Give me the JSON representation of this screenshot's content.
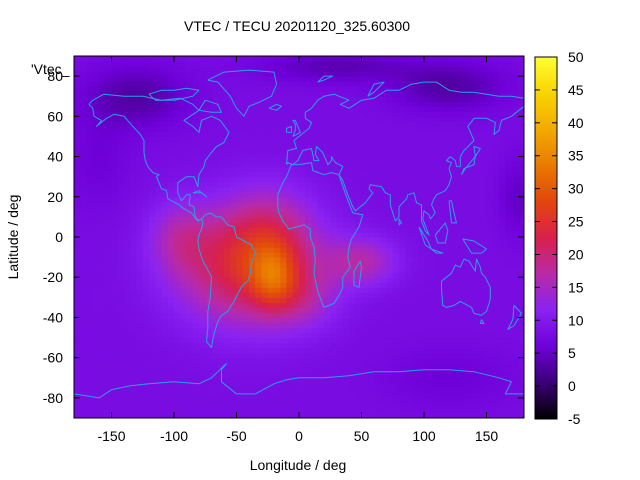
{
  "chart_data": {
    "type": "heatmap",
    "title": "VTEC / TECU 20201120_325.60300",
    "xlabel": "Longitude / deg",
    "ylabel": "Latitude / deg",
    "legend_label": "'Vtec_",
    "xlim": [
      -180,
      180
    ],
    "ylim": [
      -90,
      90
    ],
    "x_ticks": [
      -150,
      -100,
      -50,
      0,
      50,
      100,
      150
    ],
    "y_ticks": [
      -80,
      -60,
      -40,
      -20,
      0,
      20,
      40,
      60,
      80
    ],
    "colorbar": {
      "range": [
        -5,
        50
      ],
      "ticks": [
        -5,
        0,
        5,
        10,
        15,
        20,
        25,
        30,
        35,
        40,
        45,
        50
      ],
      "colors": [
        "#000000",
        "#3a0076",
        "#6e00d8",
        "#8a22f2",
        "#b82ba8",
        "#d8204c",
        "#e2460d",
        "#e97a00",
        "#f2aa00",
        "#f9d400",
        "#ffff33"
      ]
    },
    "background_value": 8,
    "blobs": [
      {
        "lon": -40,
        "lat": -15,
        "amp": 16,
        "slon": 55,
        "slat": 28,
        "desc": "main anomaly over South America / South Atlantic"
      },
      {
        "lon": -25,
        "lat": 5,
        "amp": 6,
        "slon": 35,
        "slat": 22
      },
      {
        "lon": -95,
        "lat": 0,
        "amp": 6,
        "slon": 25,
        "slat": 18
      },
      {
        "lon": 50,
        "lat": -12,
        "amp": 8,
        "slon": 28,
        "slat": 12
      },
      {
        "lon": -20,
        "lat": -20,
        "amp": 10,
        "slon": 18,
        "slat": 16
      },
      {
        "lon": 5,
        "lat": -30,
        "amp": 4,
        "slon": 25,
        "slat": 15
      },
      {
        "lon": -130,
        "lat": 70,
        "amp": -5,
        "slon": 40,
        "slat": 15
      },
      {
        "lon": 120,
        "lat": 75,
        "amp": -5,
        "slon": 45,
        "slat": 12
      },
      {
        "lon": 30,
        "lat": 85,
        "amp": -4,
        "slon": 60,
        "slat": 8
      },
      {
        "lon": -160,
        "lat": 40,
        "amp": -2,
        "slon": 25,
        "slat": 25
      },
      {
        "lon": 175,
        "lat": 20,
        "amp": -3,
        "slon": 15,
        "slat": 20
      },
      {
        "lon": 120,
        "lat": -70,
        "amp": -2,
        "slon": 50,
        "slat": 15
      }
    ]
  },
  "coastlines": [
    [
      [
        -165,
        68
      ],
      [
        -156,
        71
      ],
      [
        -140,
        70
      ],
      [
        -125,
        70
      ],
      [
        -110,
        68
      ],
      [
        -95,
        69
      ],
      [
        -85,
        66
      ],
      [
        -80,
        63
      ],
      [
        -92,
        58
      ],
      [
        -85,
        55
      ],
      [
        -80,
        52
      ],
      [
        -78,
        58
      ],
      [
        -70,
        60
      ],
      [
        -63,
        58
      ],
      [
        -56,
        52
      ],
      [
        -60,
        47
      ],
      [
        -66,
        45
      ],
      [
        -70,
        42
      ],
      [
        -75,
        38
      ],
      [
        -76,
        35
      ],
      [
        -80,
        31
      ],
      [
        -81,
        25
      ],
      [
        -84,
        30
      ],
      [
        -90,
        30
      ],
      [
        -97,
        27
      ],
      [
        -97,
        22
      ],
      [
        -94,
        18
      ],
      [
        -90,
        21
      ],
      [
        -87,
        21
      ],
      [
        -88,
        16
      ],
      [
        -84,
        15
      ],
      [
        -83,
        10
      ],
      [
        -80,
        8
      ],
      [
        -78,
        9
      ],
      [
        -81,
        8
      ],
      [
        -86,
        12
      ],
      [
        -92,
        14
      ],
      [
        -96,
        16
      ],
      [
        -105,
        19
      ],
      [
        -106,
        23
      ],
      [
        -110,
        24
      ],
      [
        -114,
        30
      ],
      [
        -112,
        31
      ],
      [
        -117,
        32
      ],
      [
        -121,
        35
      ],
      [
        -123,
        38
      ],
      [
        -124,
        42
      ],
      [
        -124,
        48
      ],
      [
        -127,
        51
      ],
      [
        -133,
        55
      ],
      [
        -140,
        60
      ],
      [
        -148,
        61
      ],
      [
        -154,
        59
      ],
      [
        -162,
        55
      ],
      [
        -158,
        58
      ],
      [
        -164,
        60
      ],
      [
        -165,
        64
      ],
      [
        -168,
        66
      ],
      [
        -165,
        68
      ]
    ],
    [
      [
        -78,
        9
      ],
      [
        -75,
        11
      ],
      [
        -71,
        12
      ],
      [
        -66,
        10
      ],
      [
        -62,
        10
      ],
      [
        -57,
        6
      ],
      [
        -52,
        5
      ],
      [
        -50,
        0
      ],
      [
        -44,
        -2
      ],
      [
        -38,
        -4
      ],
      [
        -35,
        -8
      ],
      [
        -38,
        -13
      ],
      [
        -39,
        -18
      ],
      [
        -41,
        -22
      ],
      [
        -45,
        -24
      ],
      [
        -48,
        -27
      ],
      [
        -52,
        -32
      ],
      [
        -57,
        -37
      ],
      [
        -62,
        -39
      ],
      [
        -65,
        -42
      ],
      [
        -67,
        -46
      ],
      [
        -69,
        -51
      ],
      [
        -70,
        -55
      ],
      [
        -74,
        -52
      ],
      [
        -73,
        -45
      ],
      [
        -73,
        -37
      ],
      [
        -71,
        -30
      ],
      [
        -70,
        -20
      ],
      [
        -74,
        -15
      ],
      [
        -77,
        -12
      ],
      [
        -80,
        -6
      ],
      [
        -81,
        -2
      ],
      [
        -80,
        1
      ],
      [
        -78,
        4
      ],
      [
        -77,
        7
      ],
      [
        -78,
        9
      ]
    ],
    [
      [
        -17,
        15
      ],
      [
        -17,
        21
      ],
      [
        -13,
        27
      ],
      [
        -10,
        30
      ],
      [
        -6,
        36
      ],
      [
        0,
        36
      ],
      [
        10,
        37
      ],
      [
        11,
        33
      ],
      [
        20,
        31
      ],
      [
        26,
        32
      ],
      [
        32,
        31
      ],
      [
        34,
        27
      ],
      [
        38,
        20
      ],
      [
        43,
        12
      ],
      [
        51,
        11
      ],
      [
        48,
        5
      ],
      [
        42,
        -1
      ],
      [
        40,
        -5
      ],
      [
        39,
        -10
      ],
      [
        41,
        -15
      ],
      [
        35,
        -20
      ],
      [
        35,
        -25
      ],
      [
        32,
        -29
      ],
      [
        28,
        -33
      ],
      [
        20,
        -35
      ],
      [
        18,
        -32
      ],
      [
        15,
        -27
      ],
      [
        12,
        -18
      ],
      [
        13,
        -12
      ],
      [
        12,
        -5
      ],
      [
        9,
        0
      ],
      [
        9,
        4
      ],
      [
        4,
        6
      ],
      [
        -2,
        5
      ],
      [
        -8,
        4
      ],
      [
        -13,
        8
      ],
      [
        -16,
        12
      ],
      [
        -17,
        15
      ]
    ],
    [
      [
        -10,
        36
      ],
      [
        -9,
        43
      ],
      [
        -2,
        44
      ],
      [
        -4,
        48
      ],
      [
        2,
        51
      ],
      [
        8,
        54
      ],
      [
        10,
        57
      ],
      [
        5,
        59
      ],
      [
        5,
        62
      ],
      [
        10,
        64
      ],
      [
        15,
        68
      ],
      [
        20,
        70
      ],
      [
        28,
        71
      ],
      [
        40,
        68
      ],
      [
        33,
        66
      ],
      [
        40,
        64
      ],
      [
        50,
        68
      ],
      [
        60,
        69
      ],
      [
        70,
        73
      ],
      [
        80,
        73
      ],
      [
        90,
        76
      ],
      [
        100,
        77
      ],
      [
        110,
        77
      ],
      [
        120,
        73
      ],
      [
        130,
        72
      ],
      [
        140,
        72
      ],
      [
        150,
        71
      ],
      [
        160,
        70
      ],
      [
        170,
        70
      ],
      [
        180,
        69
      ]
    ],
    [
      [
        180,
        65
      ],
      [
        178,
        64
      ],
      [
        170,
        60
      ],
      [
        162,
        58
      ],
      [
        160,
        53
      ],
      [
        156,
        51
      ],
      [
        157,
        57
      ],
      [
        150,
        59
      ],
      [
        140,
        59
      ],
      [
        135,
        55
      ],
      [
        140,
        48
      ],
      [
        132,
        43
      ],
      [
        129,
        40
      ],
      [
        129,
        35
      ],
      [
        126,
        35
      ],
      [
        125,
        38
      ],
      [
        121,
        40
      ],
      [
        118,
        38
      ],
      [
        122,
        37
      ],
      [
        120,
        34
      ],
      [
        122,
        30
      ],
      [
        120,
        26
      ],
      [
        117,
        23
      ],
      [
        110,
        21
      ],
      [
        108,
        19
      ],
      [
        106,
        16
      ],
      [
        109,
        12
      ],
      [
        105,
        9
      ],
      [
        104,
        11
      ],
      [
        100,
        13
      ],
      [
        99,
        9
      ],
      [
        104,
        1
      ],
      [
        101,
        3
      ],
      [
        98,
        8
      ],
      [
        98,
        16
      ],
      [
        94,
        17
      ],
      [
        92,
        22
      ],
      [
        87,
        21
      ],
      [
        86,
        19
      ],
      [
        80,
        15
      ],
      [
        80,
        10
      ],
      [
        77,
        8
      ],
      [
        73,
        16
      ],
      [
        73,
        21
      ],
      [
        69,
        22
      ],
      [
        66,
        25
      ],
      [
        57,
        26
      ],
      [
        56,
        24
      ],
      [
        59,
        22
      ],
      [
        53,
        17
      ],
      [
        45,
        13
      ],
      [
        43,
        15
      ],
      [
        39,
        21
      ],
      [
        35,
        28
      ],
      [
        32,
        31
      ],
      [
        35,
        35
      ],
      [
        29,
        37
      ],
      [
        26,
        40
      ],
      [
        26,
        38
      ],
      [
        23,
        36
      ],
      [
        21,
        39
      ],
      [
        19,
        42
      ],
      [
        14,
        45
      ],
      [
        13,
        41
      ],
      [
        16,
        38
      ],
      [
        12,
        38
      ],
      [
        10,
        44
      ],
      [
        3,
        43
      ],
      [
        -1,
        38
      ],
      [
        -5,
        36
      ],
      [
        -9,
        37
      ],
      [
        -10,
        36
      ]
    ],
    [
      [
        96,
        5
      ],
      [
        103,
        -2
      ],
      [
        106,
        -6
      ],
      [
        101,
        -4
      ],
      [
        96,
        5
      ]
    ],
    [
      [
        106,
        -6
      ],
      [
        115,
        -8
      ],
      [
        110,
        -8
      ],
      [
        106,
        -6
      ]
    ],
    [
      [
        109,
        1
      ],
      [
        117,
        7
      ],
      [
        119,
        3
      ],
      [
        117,
        -3
      ],
      [
        111,
        -3
      ],
      [
        109,
        1
      ]
    ],
    [
      [
        131,
        -1
      ],
      [
        140,
        -2
      ],
      [
        150,
        -6
      ],
      [
        146,
        -8
      ],
      [
        138,
        -8
      ],
      [
        131,
        -1
      ]
    ],
    [
      [
        114,
        -22
      ],
      [
        114,
        -26
      ],
      [
        115,
        -34
      ],
      [
        118,
        -35
      ],
      [
        124,
        -34
      ],
      [
        129,
        -32
      ],
      [
        135,
        -34
      ],
      [
        138,
        -35
      ],
      [
        140,
        -38
      ],
      [
        146,
        -39
      ],
      [
        150,
        -37
      ],
      [
        153,
        -31
      ],
      [
        153,
        -25
      ],
      [
        149,
        -20
      ],
      [
        146,
        -18
      ],
      [
        145,
        -15
      ],
      [
        142,
        -11
      ],
      [
        141,
        -17
      ],
      [
        136,
        -12
      ],
      [
        132,
        -11
      ],
      [
        129,
        -15
      ],
      [
        125,
        -14
      ],
      [
        122,
        -18
      ],
      [
        114,
        -22
      ]
    ],
    [
      [
        146,
        -41
      ],
      [
        148,
        -43
      ],
      [
        145,
        -43
      ],
      [
        146,
        -41
      ]
    ],
    [
      [
        172,
        -34
      ],
      [
        178,
        -38
      ],
      [
        175,
        -41
      ],
      [
        172,
        -44
      ],
      [
        167,
        -46
      ],
      [
        171,
        -41
      ],
      [
        172,
        -34
      ]
    ],
    [
      [
        130,
        31
      ],
      [
        132,
        34
      ],
      [
        136,
        35
      ],
      [
        140,
        36
      ],
      [
        141,
        40
      ],
      [
        140,
        45
      ],
      [
        145,
        44
      ],
      [
        141,
        40
      ],
      [
        137,
        37
      ],
      [
        133,
        34
      ],
      [
        130,
        31
      ]
    ],
    [
      [
        -73,
        78
      ],
      [
        -60,
        82
      ],
      [
        -40,
        83
      ],
      [
        -20,
        82
      ],
      [
        -18,
        76
      ],
      [
        -22,
        70
      ],
      [
        -32,
        67
      ],
      [
        -40,
        65
      ],
      [
        -44,
        60
      ],
      [
        -50,
        64
      ],
      [
        -55,
        70
      ],
      [
        -65,
        77
      ],
      [
        -73,
        78
      ]
    ],
    [
      [
        -5,
        50
      ],
      [
        -3,
        53
      ],
      [
        -3,
        56
      ],
      [
        -5,
        58
      ],
      [
        -3,
        58
      ],
      [
        -1,
        55
      ],
      [
        1,
        52
      ],
      [
        -5,
        50
      ]
    ],
    [
      [
        -10,
        52
      ],
      [
        -6,
        52
      ],
      [
        -6,
        55
      ],
      [
        -10,
        54
      ],
      [
        -10,
        52
      ]
    ],
    [
      [
        -24,
        64
      ],
      [
        -18,
        66
      ],
      [
        -14,
        65
      ],
      [
        -18,
        63
      ],
      [
        -24,
        64
      ]
    ],
    [
      [
        49,
        -12
      ],
      [
        50,
        -15
      ],
      [
        48,
        -25
      ],
      [
        44,
        -24
      ],
      [
        44,
        -17
      ],
      [
        49,
        -12
      ]
    ],
    [
      [
        120,
        18
      ],
      [
        122,
        18
      ],
      [
        124,
        12
      ],
      [
        126,
        7
      ],
      [
        122,
        7
      ],
      [
        120,
        18
      ]
    ],
    [
      [
        80,
        9
      ],
      [
        82,
        7
      ],
      [
        80,
        6
      ],
      [
        80,
        9
      ]
    ],
    [
      [
        -85,
        22
      ],
      [
        -78,
        22
      ],
      [
        -74,
        20
      ],
      [
        -80,
        23
      ],
      [
        -85,
        22
      ]
    ],
    [
      [
        -180,
        -78
      ],
      [
        -160,
        -80
      ],
      [
        -150,
        -76
      ],
      [
        -135,
        -74
      ],
      [
        -120,
        -73
      ],
      [
        -100,
        -72
      ],
      [
        -80,
        -73
      ],
      [
        -70,
        -70
      ],
      [
        -60,
        -64
      ],
      [
        -58,
        -63
      ],
      [
        -62,
        -66
      ],
      [
        -62,
        -72
      ],
      [
        -50,
        -78
      ],
      [
        -35,
        -78
      ],
      [
        -20,
        -73
      ],
      [
        -10,
        -71
      ],
      [
        0,
        -70
      ],
      [
        20,
        -70
      ],
      [
        40,
        -69
      ],
      [
        60,
        -67
      ],
      [
        80,
        -67
      ],
      [
        100,
        -66
      ],
      [
        120,
        -66
      ],
      [
        140,
        -67
      ],
      [
        160,
        -70
      ],
      [
        170,
        -72
      ],
      [
        165,
        -78
      ],
      [
        180,
        -78
      ]
    ],
    [
      [
        -80,
        73
      ],
      [
        -90,
        74
      ],
      [
        -100,
        73
      ],
      [
        -110,
        73
      ],
      [
        -120,
        71
      ],
      [
        -115,
        68
      ],
      [
        -100,
        68
      ],
      [
        -85,
        70
      ],
      [
        -80,
        73
      ]
    ],
    [
      [
        -80,
        63
      ],
      [
        -75,
        68
      ],
      [
        -65,
        66
      ],
      [
        -62,
        62
      ],
      [
        -70,
        62
      ],
      [
        -80,
        63
      ]
    ],
    [
      [
        55,
        70
      ],
      [
        60,
        76
      ],
      [
        68,
        77
      ],
      [
        60,
        72
      ],
      [
        55,
        70
      ]
    ],
    [
      [
        15,
        77
      ],
      [
        20,
        80
      ],
      [
        27,
        80
      ],
      [
        20,
        78
      ],
      [
        15,
        77
      ]
    ]
  ]
}
